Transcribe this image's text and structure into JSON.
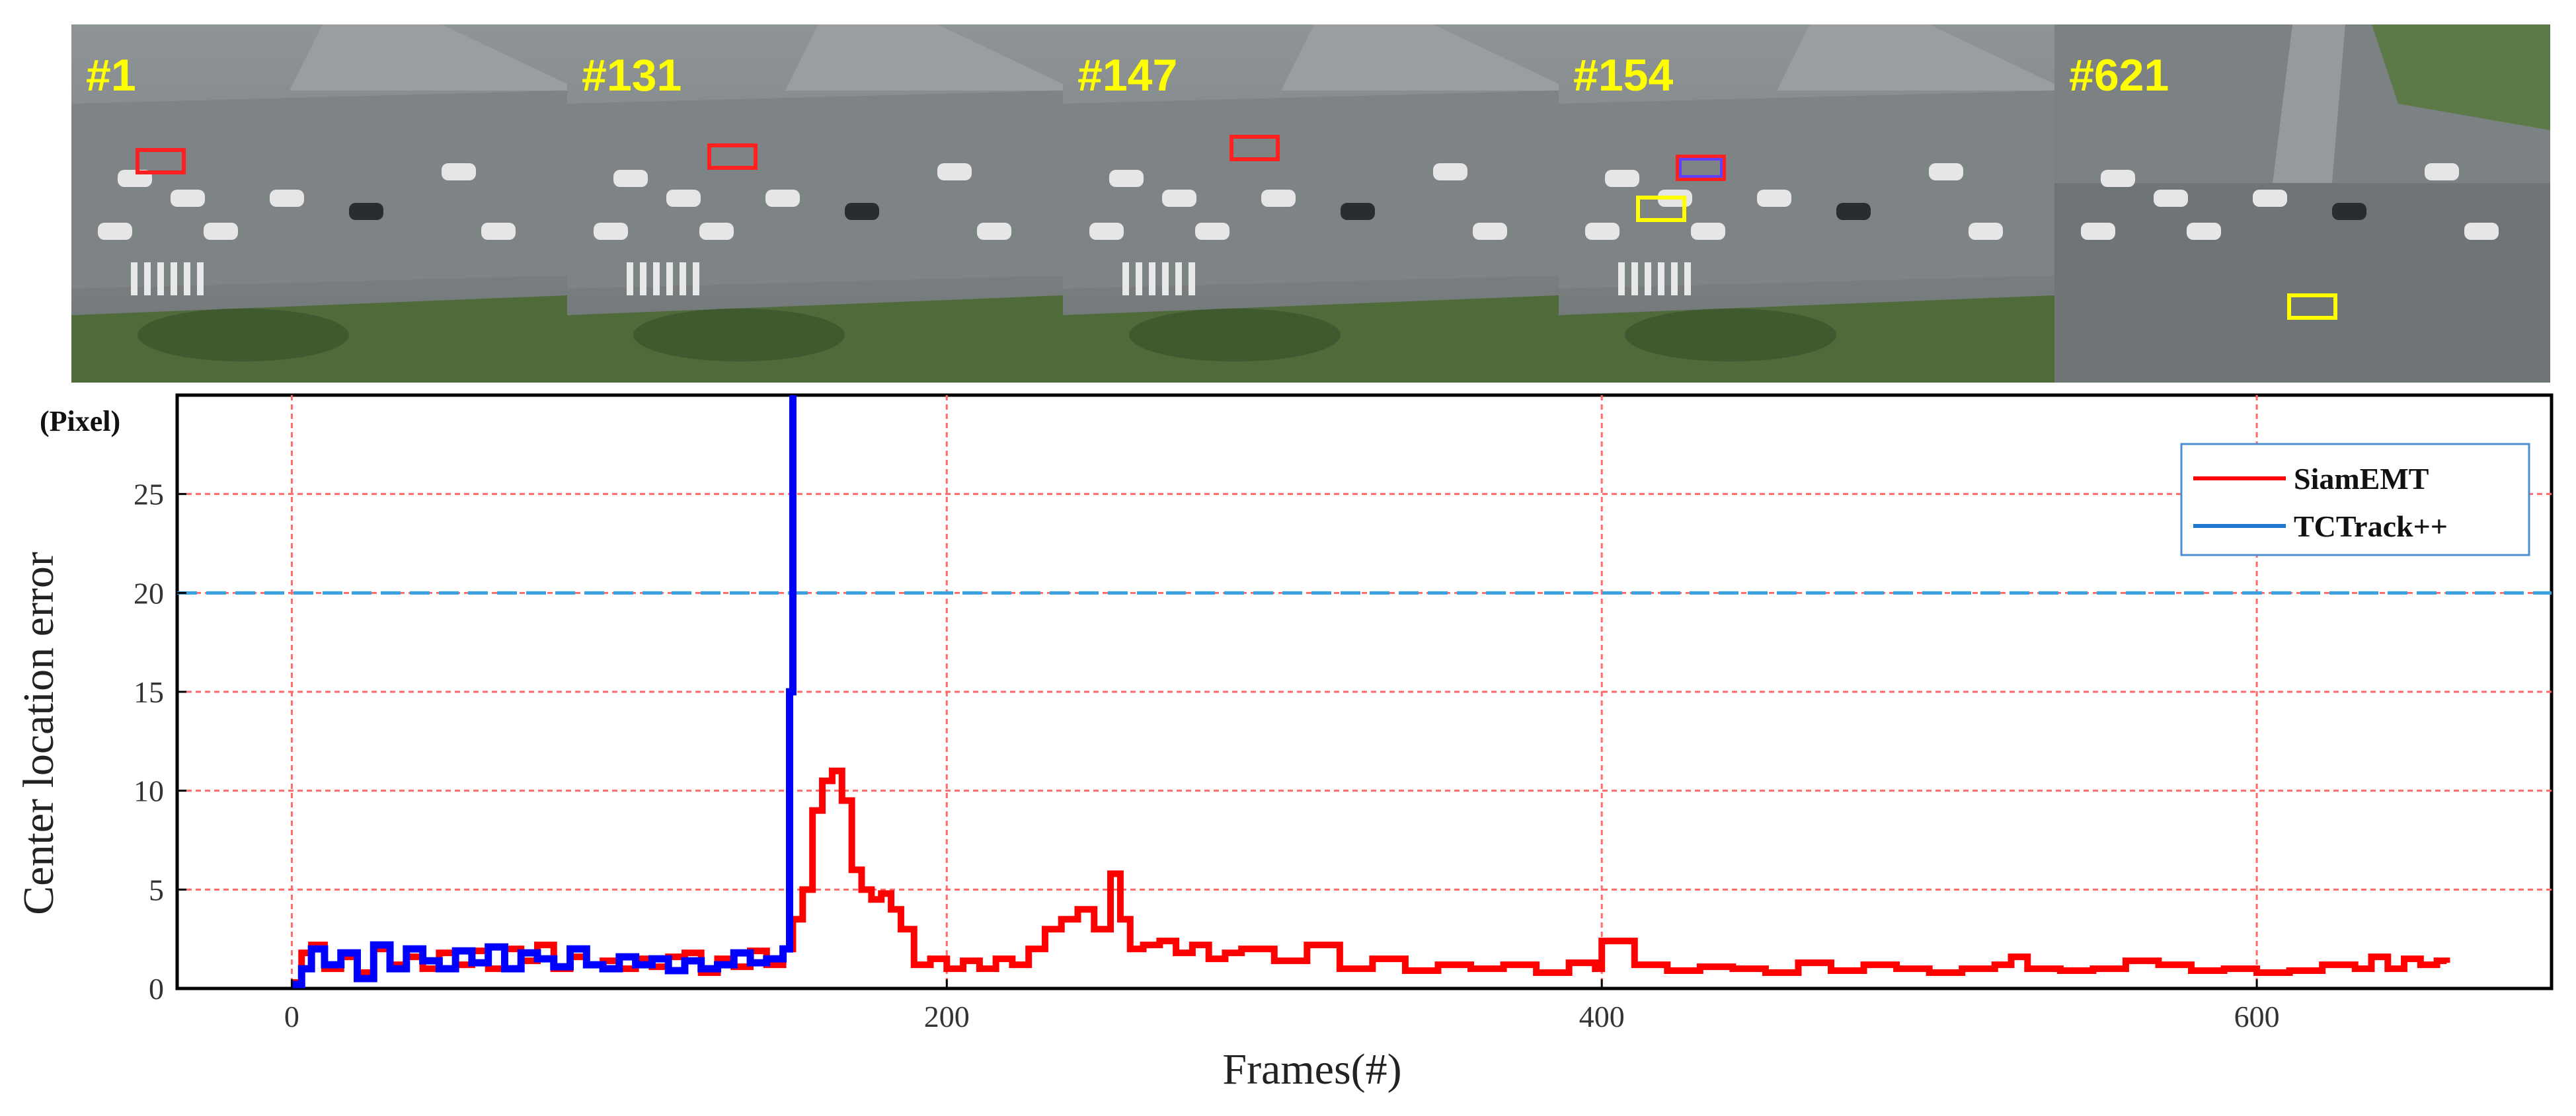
{
  "frames": [
    {
      "label": "#1"
    },
    {
      "label": "#131"
    },
    {
      "label": "#147"
    },
    {
      "label": "#154"
    },
    {
      "label": "#621"
    }
  ],
  "chart_data": {
    "type": "line",
    "xlabel": "Frames(#)",
    "ylabel": "Center location error",
    "yunit": "(Pixel)",
    "xlim": [
      -35,
      690
    ],
    "ylim": [
      0,
      30
    ],
    "xticks": [
      0,
      200,
      400,
      600
    ],
    "yticks": [
      0,
      5,
      10,
      15,
      20,
      25
    ],
    "threshold": 20,
    "grid": true,
    "legend": "top-right",
    "colors": {
      "SiamEMT": "#ff0000",
      "TCTrack++": "#0000ff",
      "legend_TCTrack++": "#1f77d0",
      "threshold": "#3aa0e0",
      "grid": "#ff6b6b"
    },
    "series": [
      {
        "name": "SiamEMT",
        "x": [
          0,
          3,
          6,
          10,
          15,
          20,
          25,
          30,
          35,
          40,
          45,
          50,
          55,
          60,
          65,
          70,
          75,
          80,
          85,
          90,
          95,
          100,
          105,
          110,
          115,
          120,
          125,
          130,
          135,
          140,
          145,
          150,
          153,
          156,
          159,
          162,
          165,
          168,
          171,
          174,
          177,
          180,
          183,
          186,
          190,
          195,
          200,
          205,
          210,
          215,
          220,
          225,
          230,
          235,
          240,
          245,
          250,
          253,
          256,
          260,
          265,
          270,
          275,
          280,
          285,
          290,
          300,
          310,
          320,
          330,
          340,
          350,
          360,
          370,
          380,
          390,
          398,
          400,
          410,
          420,
          430,
          440,
          450,
          460,
          470,
          480,
          490,
          500,
          510,
          520,
          525,
          530,
          540,
          550,
          560,
          570,
          580,
          590,
          600,
          610,
          620,
          630,
          635,
          640,
          645,
          650,
          655,
          658
        ],
        "values": [
          0.3,
          1.8,
          2.2,
          1.0,
          1.6,
          0.8,
          2.0,
          1.2,
          1.6,
          1.0,
          1.8,
          1.2,
          1.9,
          1.0,
          2.0,
          1.4,
          2.2,
          1.0,
          1.6,
          1.2,
          1.4,
          1.0,
          1.5,
          1.1,
          1.6,
          1.8,
          0.8,
          1.5,
          1.1,
          1.9,
          1.2,
          2.0,
          3.5,
          5.0,
          9.0,
          10.5,
          11.0,
          9.5,
          6.0,
          5.0,
          4.5,
          4.8,
          4.0,
          3.0,
          1.2,
          1.5,
          1.0,
          1.4,
          1.0,
          1.5,
          1.2,
          2.0,
          3.0,
          3.5,
          4.0,
          3.0,
          5.8,
          3.5,
          2.0,
          2.2,
          2.4,
          1.8,
          2.2,
          1.5,
          1.8,
          2.0,
          1.4,
          2.2,
          1.0,
          1.5,
          0.9,
          1.2,
          1.0,
          1.2,
          0.8,
          1.3,
          1.0,
          2.4,
          1.2,
          0.9,
          1.1,
          1.0,
          0.8,
          1.3,
          0.9,
          1.2,
          1.0,
          0.8,
          1.0,
          1.2,
          1.6,
          1.0,
          0.9,
          1.0,
          1.4,
          1.2,
          0.9,
          1.0,
          0.8,
          0.9,
          1.2,
          1.0,
          1.6,
          1.0,
          1.5,
          1.2,
          1.4,
          1.3
        ]
      },
      {
        "name": "TCTrack++",
        "x": [
          0,
          3,
          6,
          10,
          15,
          20,
          25,
          30,
          35,
          40,
          45,
          50,
          55,
          60,
          65,
          70,
          75,
          80,
          85,
          90,
          95,
          100,
          105,
          110,
          115,
          120,
          125,
          130,
          135,
          140,
          145,
          150,
          152,
          153
        ],
        "values": [
          0.2,
          1.0,
          2.0,
          1.2,
          1.8,
          0.5,
          2.2,
          1.0,
          2.0,
          1.4,
          1.0,
          1.9,
          1.3,
          2.1,
          1.0,
          1.8,
          1.5,
          1.1,
          2.0,
          1.2,
          1.0,
          1.6,
          1.2,
          1.5,
          0.9,
          1.4,
          1.0,
          1.2,
          1.8,
          1.3,
          1.5,
          2.0,
          15.0,
          30.0
        ]
      }
    ]
  }
}
